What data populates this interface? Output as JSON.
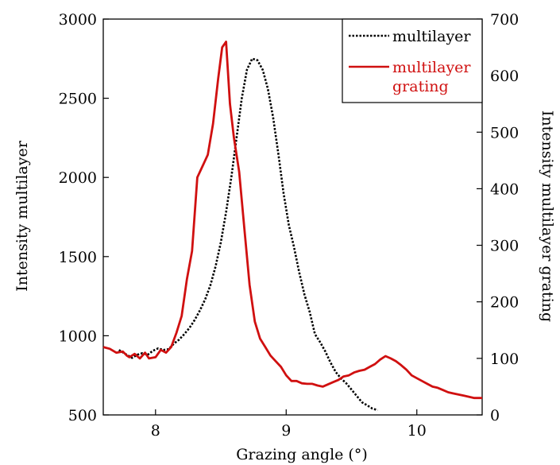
{
  "chart_data": {
    "type": "line",
    "xlabel": "Grazing angle (°)",
    "ylabel": "Intensity multilayer",
    "ylabel_right": "Intensity multilayer grating",
    "xlim": [
      7.6,
      10.5
    ],
    "ylim": [
      500,
      3000
    ],
    "ylim_right": [
      0,
      700
    ],
    "x_ticks": [
      8,
      9,
      10
    ],
    "x_tick_labels": [
      "8",
      "9",
      "10"
    ],
    "y_ticks": [
      500,
      1000,
      1500,
      2000,
      2500,
      3000
    ],
    "y_tick_labels": [
      "500",
      "1000",
      "1500",
      "2000",
      "2500",
      "3000"
    ],
    "y_ticks_right": [
      0,
      100,
      200,
      300,
      400,
      500,
      600,
      700
    ],
    "y_tick_labels_right": [
      "0",
      "100",
      "200",
      "300",
      "400",
      "500",
      "600",
      "700"
    ],
    "grid": false,
    "legend_position": "top-right",
    "series": [
      {
        "name": "multilayer",
        "axis": "left",
        "color": "#000000",
        "style": "dotted",
        "x": [
          7.72,
          7.78,
          7.82,
          7.86,
          7.9,
          7.94,
          7.98,
          8.02,
          8.06,
          8.1,
          8.14,
          8.18,
          8.22,
          8.26,
          8.3,
          8.34,
          8.38,
          8.42,
          8.46,
          8.5,
          8.54,
          8.58,
          8.62,
          8.66,
          8.7,
          8.74,
          8.78,
          8.82,
          8.86,
          8.9,
          8.94,
          8.98,
          9.02,
          9.06,
          9.1,
          9.14,
          9.18,
          9.22,
          9.26,
          9.3,
          9.34,
          9.38,
          9.42,
          9.46,
          9.5,
          9.54,
          9.58,
          9.62,
          9.66,
          9.7
        ],
        "values": [
          910,
          880,
          860,
          880,
          890,
          880,
          905,
          920,
          910,
          915,
          950,
          975,
          1010,
          1050,
          1100,
          1160,
          1230,
          1320,
          1440,
          1590,
          1780,
          2000,
          2250,
          2500,
          2680,
          2750,
          2740,
          2680,
          2560,
          2380,
          2150,
          1900,
          1700,
          1560,
          1400,
          1260,
          1150,
          1010,
          960,
          900,
          830,
          770,
          730,
          700,
          660,
          620,
          580,
          560,
          540,
          530
        ]
      },
      {
        "name": "multilayer\ngrating",
        "axis": "right",
        "color": "#d01010",
        "style": "solid",
        "x": [
          7.6,
          7.65,
          7.7,
          7.75,
          7.78,
          7.8,
          7.84,
          7.88,
          7.92,
          7.95,
          8.0,
          8.04,
          8.08,
          8.12,
          8.16,
          8.2,
          8.24,
          8.28,
          8.32,
          8.36,
          8.4,
          8.44,
          8.48,
          8.51,
          8.54,
          8.57,
          8.6,
          8.64,
          8.68,
          8.72,
          8.76,
          8.8,
          8.84,
          8.88,
          8.92,
          8.96,
          9.0,
          9.04,
          9.08,
          9.12,
          9.16,
          9.2,
          9.24,
          9.28,
          9.32,
          9.36,
          9.4,
          9.44,
          9.48,
          9.52,
          9.56,
          9.6,
          9.64,
          9.68,
          9.72,
          9.76,
          9.8,
          9.84,
          9.88,
          9.92,
          9.96,
          10.0,
          10.04,
          10.08,
          10.12,
          10.16,
          10.2,
          10.24,
          10.28,
          10.32,
          10.36,
          10.4,
          10.44,
          10.5
        ],
        "values": [
          120,
          117,
          110,
          112,
          105,
          102,
          108,
          100,
          110,
          100,
          102,
          115,
          110,
          120,
          145,
          175,
          240,
          290,
          420,
          440,
          460,
          515,
          595,
          650,
          660,
          550,
          490,
          430,
          330,
          230,
          165,
          135,
          120,
          105,
          95,
          85,
          70,
          60,
          60,
          56,
          55,
          55,
          52,
          50,
          54,
          58,
          62,
          68,
          70,
          75,
          78,
          80,
          85,
          90,
          98,
          104,
          100,
          95,
          88,
          80,
          70,
          65,
          60,
          55,
          50,
          48,
          44,
          40,
          38,
          36,
          34,
          32,
          30,
          30
        ]
      }
    ]
  }
}
